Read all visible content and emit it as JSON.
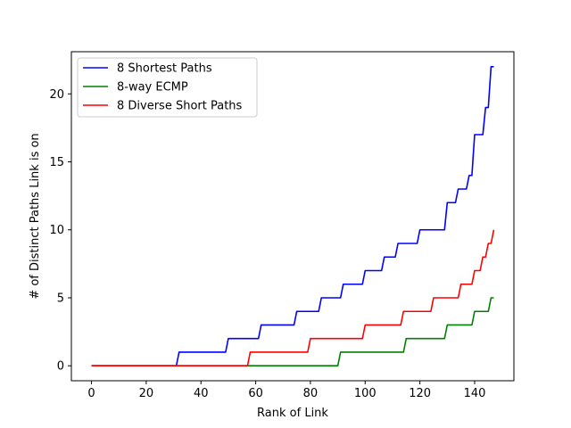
{
  "chart_data": {
    "type": "line",
    "xlabel": "Rank of Link",
    "ylabel": "# of Distinct Paths Link is on",
    "xlim": [
      -7.35,
      154.35
    ],
    "ylim": [
      -1.1,
      23.1
    ],
    "xticks": [
      0,
      20,
      40,
      60,
      80,
      100,
      120,
      140
    ],
    "yticks": [
      0,
      5,
      10,
      15,
      20
    ],
    "grid": false,
    "legend_position": "top-left",
    "series": [
      {
        "name": "8 Shortest Paths",
        "color": "#0000ff",
        "x": [
          0,
          31,
          32,
          49,
          50,
          61,
          62,
          74,
          75,
          83,
          84,
          91,
          92,
          99,
          100,
          106,
          107,
          111,
          112,
          119,
          120,
          129,
          130,
          133,
          134,
          137,
          138,
          139,
          140,
          143,
          144,
          145,
          146,
          147
        ],
        "y": [
          0,
          0,
          1,
          1,
          2,
          2,
          3,
          3,
          4,
          4,
          5,
          5,
          6,
          6,
          7,
          7,
          8,
          8,
          9,
          9,
          10,
          10,
          12,
          12,
          13,
          13,
          14,
          14,
          17,
          17,
          19,
          19,
          22,
          22
        ]
      },
      {
        "name": "8-way ECMP",
        "color": "#008000",
        "x": [
          0,
          90,
          91,
          114,
          115,
          129,
          130,
          139,
          140,
          143,
          144,
          145,
          146,
          147
        ],
        "y": [
          0,
          0,
          1,
          1,
          2,
          2,
          3,
          3,
          4,
          4,
          4,
          4,
          5,
          5
        ]
      },
      {
        "name": "8 Diverse Short Paths",
        "color": "#ff0000",
        "x": [
          0,
          57,
          58,
          79,
          80,
          99,
          100,
          113,
          114,
          124,
          125,
          134,
          135,
          138,
          139,
          140,
          141,
          142,
          143,
          144,
          145,
          146,
          147
        ],
        "y": [
          0,
          0,
          1,
          1,
          2,
          2,
          3,
          3,
          4,
          4,
          5,
          5,
          6,
          6,
          6,
          7,
          7,
          7,
          8,
          8,
          9,
          9,
          10
        ]
      }
    ]
  }
}
